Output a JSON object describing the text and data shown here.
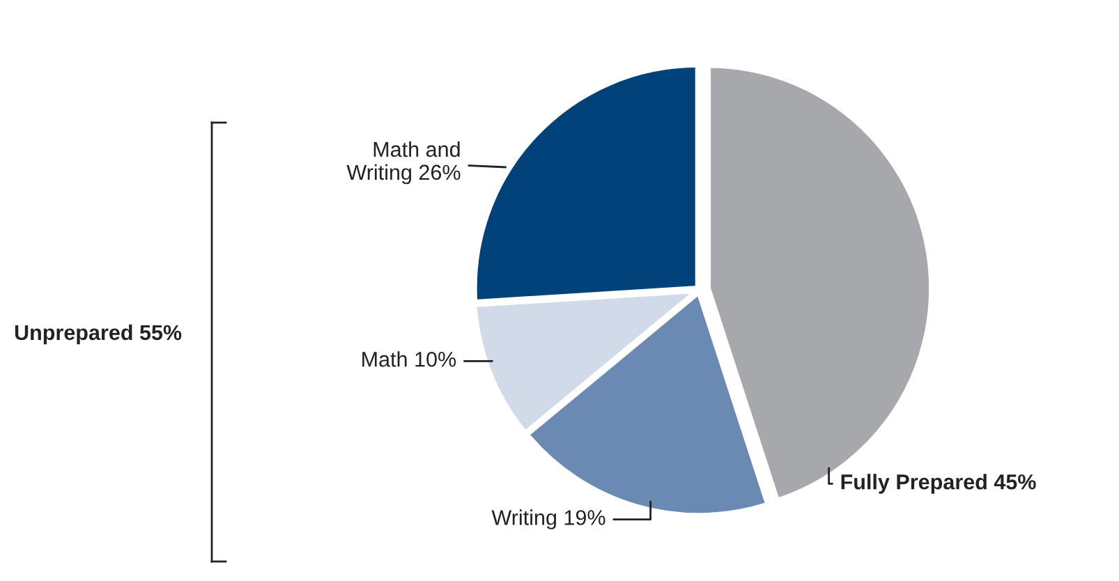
{
  "chart_data": {
    "type": "pie",
    "categories": [
      "Fully Prepared",
      "Writing",
      "Math",
      "Math and\nWriting"
    ],
    "values": [
      45,
      19,
      10,
      26
    ],
    "value_labels": [
      "45%",
      "19%",
      "10%",
      "26%"
    ],
    "colors": [
      "#a7a8ac",
      "#6a89b3",
      "#d0dae8",
      "#02427a"
    ],
    "annotations": [
      "Unprepared 55%"
    ],
    "legend": false
  }
}
